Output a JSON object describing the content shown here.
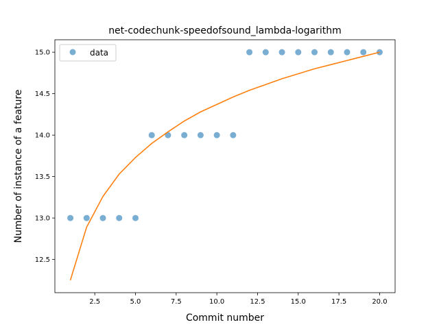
{
  "chart_data": {
    "type": "scatter",
    "title": "net-codechunk-speedofsound_lambda-logarithm",
    "xlabel": "Commit number",
    "ylabel": "Number of instance of a feature",
    "xlim": [
      0.05,
      20.95
    ],
    "ylim": [
      12.1,
      15.15
    ],
    "xticks": [
      2.5,
      5.0,
      7.5,
      10.0,
      12.5,
      15.0,
      17.5,
      20.0
    ],
    "xtick_labels": [
      "2.5",
      "5.0",
      "7.5",
      "10.0",
      "12.5",
      "15.0",
      "17.5",
      "20.0"
    ],
    "yticks": [
      12.5,
      13.0,
      13.5,
      14.0,
      14.5,
      15.0
    ],
    "ytick_labels": [
      "12.5",
      "13.0",
      "13.5",
      "14.0",
      "14.5",
      "15.0"
    ],
    "grid": false,
    "legend_position": "top-left",
    "series": [
      {
        "name": "data",
        "kind": "points",
        "color": "#1f77b4",
        "x": [
          1,
          2,
          3,
          4,
          5,
          6,
          7,
          8,
          9,
          10,
          11,
          12,
          13,
          14,
          15,
          16,
          17,
          18,
          19,
          20
        ],
        "y": [
          13,
          13,
          13,
          13,
          13,
          14,
          14,
          14,
          14,
          14,
          14,
          15,
          15,
          15,
          15,
          15,
          15,
          15,
          15,
          15
        ]
      },
      {
        "kind": "line",
        "color": "#ff7f0e",
        "x": [
          1,
          2,
          3,
          4,
          5,
          6,
          7,
          8,
          9,
          10,
          11,
          12,
          13,
          14,
          15,
          16,
          17,
          18,
          19,
          20
        ],
        "y": [
          12.25,
          12.89,
          13.26,
          13.53,
          13.73,
          13.9,
          14.04,
          14.17,
          14.28,
          14.37,
          14.46,
          14.54,
          14.61,
          14.68,
          14.74,
          14.8,
          14.85,
          14.9,
          14.95,
          15.0
        ]
      }
    ]
  }
}
